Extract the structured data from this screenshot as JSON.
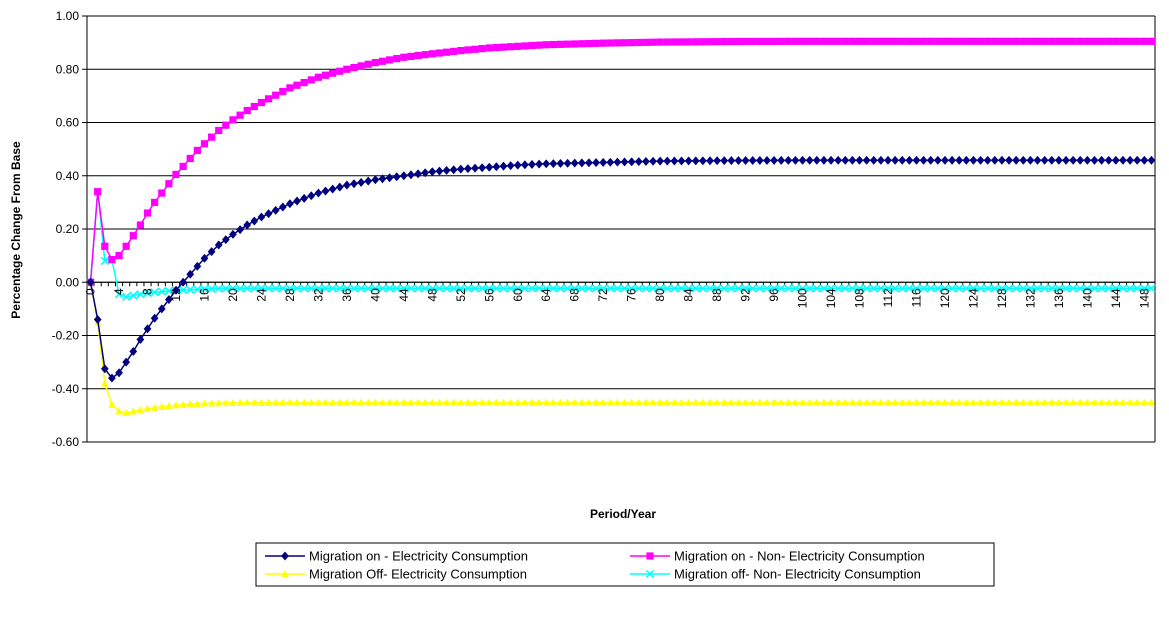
{
  "chart_data": {
    "type": "line",
    "title": "",
    "xlabel": "Period/Year",
    "ylabel": "Percentage Change From Base",
    "ylim": [
      -0.6,
      1.0
    ],
    "yticks": [
      "1.00",
      "0.80",
      "0.60",
      "0.40",
      "0.20",
      "0.00",
      "-0.20",
      "-0.40",
      "-0.60"
    ],
    "x": {
      "start": 0,
      "end": 149,
      "step": 1
    },
    "xtick_labels": [
      "0",
      "4",
      "8",
      "12",
      "16",
      "20",
      "24",
      "28",
      "32",
      "36",
      "40",
      "44",
      "48",
      "52",
      "56",
      "60",
      "64",
      "68",
      "72",
      "76",
      "80",
      "84",
      "88",
      "92",
      "96",
      "100",
      "104",
      "108",
      "112",
      "116",
      "120",
      "124",
      "128",
      "132",
      "136",
      "140",
      "144",
      "148"
    ],
    "grid": "horizontal",
    "legend_position": "bottom",
    "series": [
      {
        "name": "Migration on - Electricity Consumption",
        "color": "#000080",
        "marker": "diamond",
        "points": [
          [
            0,
            0.0
          ],
          [
            1,
            -0.14
          ],
          [
            2,
            -0.325
          ],
          [
            3,
            -0.36
          ],
          [
            4,
            -0.34
          ],
          [
            5,
            -0.3
          ],
          [
            6,
            -0.26
          ],
          [
            7,
            -0.215
          ],
          [
            8,
            -0.175
          ],
          [
            9,
            -0.135
          ],
          [
            10,
            -0.1
          ],
          [
            11,
            -0.065
          ],
          [
            12,
            -0.03
          ],
          [
            13,
            0.0
          ],
          [
            14,
            0.03
          ],
          [
            15,
            0.06
          ],
          [
            16,
            0.09
          ],
          [
            18,
            0.14
          ],
          [
            20,
            0.18
          ],
          [
            22,
            0.215
          ],
          [
            24,
            0.245
          ],
          [
            26,
            0.27
          ],
          [
            28,
            0.295
          ],
          [
            32,
            0.335
          ],
          [
            36,
            0.365
          ],
          [
            40,
            0.385
          ],
          [
            44,
            0.4
          ],
          [
            48,
            0.415
          ],
          [
            52,
            0.425
          ],
          [
            56,
            0.432
          ],
          [
            60,
            0.44
          ],
          [
            64,
            0.445
          ],
          [
            72,
            0.45
          ],
          [
            80,
            0.455
          ],
          [
            90,
            0.457
          ],
          [
            100,
            0.458
          ],
          [
            149,
            0.458
          ]
        ]
      },
      {
        "name": "Migration on - Non- Electricity Consumption",
        "color": "#FF00FF",
        "marker": "square",
        "points": [
          [
            0,
            0.0
          ],
          [
            1,
            0.34
          ],
          [
            2,
            0.135
          ],
          [
            3,
            0.085
          ],
          [
            4,
            0.1
          ],
          [
            5,
            0.135
          ],
          [
            6,
            0.175
          ],
          [
            7,
            0.215
          ],
          [
            8,
            0.26
          ],
          [
            9,
            0.3
          ],
          [
            10,
            0.335
          ],
          [
            11,
            0.37
          ],
          [
            12,
            0.405
          ],
          [
            13,
            0.435
          ],
          [
            14,
            0.465
          ],
          [
            15,
            0.495
          ],
          [
            16,
            0.52
          ],
          [
            18,
            0.57
          ],
          [
            20,
            0.61
          ],
          [
            22,
            0.645
          ],
          [
            24,
            0.675
          ],
          [
            28,
            0.73
          ],
          [
            32,
            0.77
          ],
          [
            36,
            0.8
          ],
          [
            40,
            0.825
          ],
          [
            44,
            0.845
          ],
          [
            48,
            0.858
          ],
          [
            52,
            0.87
          ],
          [
            56,
            0.88
          ],
          [
            60,
            0.886
          ],
          [
            64,
            0.892
          ],
          [
            72,
            0.898
          ],
          [
            80,
            0.902
          ],
          [
            90,
            0.904
          ],
          [
            100,
            0.905
          ],
          [
            149,
            0.905
          ]
        ]
      },
      {
        "name": "Migration Off- Electricity Consumption",
        "color": "#FFFF00",
        "marker": "triangle",
        "points": [
          [
            0,
            0.0
          ],
          [
            1,
            -0.15
          ],
          [
            2,
            -0.38
          ],
          [
            3,
            -0.46
          ],
          [
            4,
            -0.485
          ],
          [
            5,
            -0.49
          ],
          [
            6,
            -0.485
          ],
          [
            7,
            -0.48
          ],
          [
            8,
            -0.475
          ],
          [
            10,
            -0.468
          ],
          [
            12,
            -0.462
          ],
          [
            14,
            -0.458
          ],
          [
            16,
            -0.455
          ],
          [
            20,
            -0.453
          ],
          [
            30,
            -0.452
          ],
          [
            149,
            -0.452
          ]
        ]
      },
      {
        "name": "Migration off- Non- Electricity Consumption",
        "color": "#00FFFF",
        "marker": "x",
        "points": [
          [
            0,
            0.0
          ],
          [
            1,
            0.34
          ],
          [
            2,
            0.08
          ],
          [
            3,
            0.085
          ],
          [
            4,
            -0.045
          ],
          [
            5,
            -0.055
          ],
          [
            6,
            -0.05
          ],
          [
            7,
            -0.045
          ],
          [
            8,
            -0.04
          ],
          [
            10,
            -0.035
          ],
          [
            12,
            -0.03
          ],
          [
            14,
            -0.028
          ],
          [
            16,
            -0.025
          ],
          [
            20,
            -0.023
          ],
          [
            149,
            -0.023
          ]
        ]
      }
    ]
  }
}
